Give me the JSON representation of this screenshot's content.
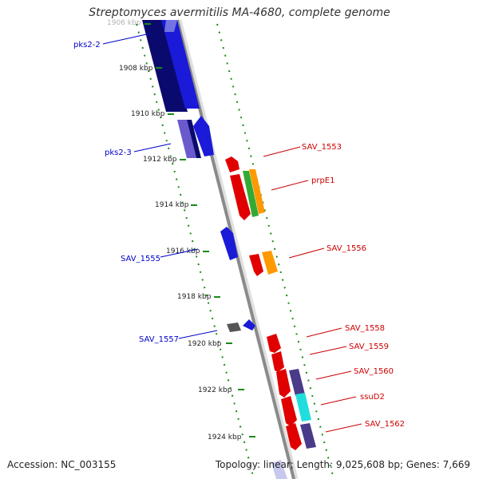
{
  "title": "Streptomyces avermitilis MA-4680, complete genome",
  "footer": {
    "accession": "Accession: NC_003155",
    "summary": "Topology: linear; Length: 9,025,608 bp; Genes: 7,669"
  },
  "colors": {
    "strand_negative_label": "#0000cc",
    "strand_positive_label": "#cc0000",
    "backbone": "#8a8a8a",
    "tick": "#1a8a1a"
  },
  "kbp_ticks": [
    {
      "label": "1906 kbp",
      "faded": true
    },
    {
      "label": "1908 kbp"
    },
    {
      "label": "1910 kbp"
    },
    {
      "label": "1912 kbp"
    },
    {
      "label": "1914 kbp"
    },
    {
      "label": "1916 kbp"
    },
    {
      "label": "1918 kbp"
    },
    {
      "label": "1920 kbp"
    },
    {
      "label": "1922 kbp"
    },
    {
      "label": "1924 kbp"
    }
  ],
  "gene_labels": {
    "negative": [
      "pks2-2",
      "pks2-3",
      "SAV_1555",
      "SAV_1557"
    ],
    "positive": [
      "SAV_1553",
      "prpE1",
      "SAV_1556",
      "SAV_1558",
      "SAV_1559",
      "SAV_1560",
      "ssuD2",
      "SAV_1562"
    ]
  }
}
